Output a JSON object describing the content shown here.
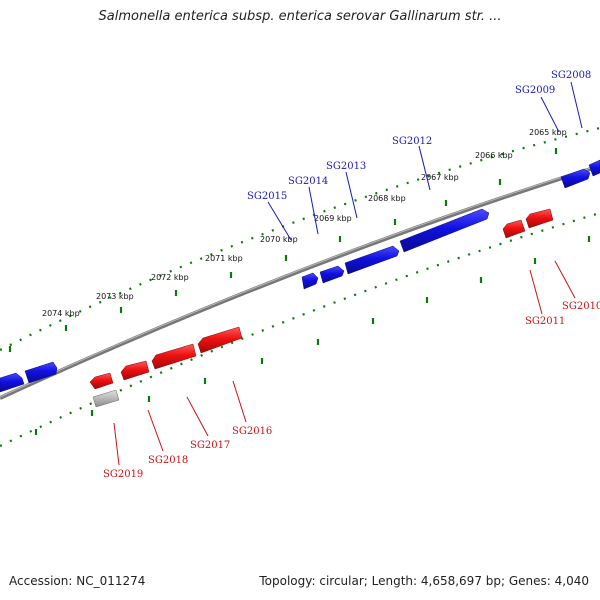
{
  "title": "Salmonella enterica subsp. enterica serovar Gallinarum str. ...",
  "footer": {
    "accession": "Accession: NC_011274",
    "summary": "Topology: circular; Length: 4,658,697 bp; Genes: 4,040"
  },
  "colors": {
    "forward_gene": "#1010e0",
    "reverse_gene": "#ee1111",
    "other_gene": "#b8b8b8",
    "backbone": "#808080",
    "ticks": "#0a7a0a",
    "forward_label": "#1a1ab8",
    "reverse_label": "#cc1111"
  },
  "scale_labels": [
    "2074 kbp",
    "2073 kbp",
    "2072 kbp",
    "2071 kbp",
    "2070 kbp",
    "2069 kbp",
    "2068 kbp",
    "2067 kbp",
    "2066 kbp",
    "2065 kbp"
  ],
  "genes_forward": [
    {
      "label": "SG2008"
    },
    {
      "label": "SG2009"
    },
    {
      "label": "SG2012"
    },
    {
      "label": "SG2013"
    },
    {
      "label": "SG2014"
    },
    {
      "label": "SG2015"
    }
  ],
  "genes_reverse": [
    {
      "label": "SG2010"
    },
    {
      "label": "SG2011"
    },
    {
      "label": "SG2016"
    },
    {
      "label": "SG2017"
    },
    {
      "label": "SG2018"
    },
    {
      "label": "SG2019"
    }
  ]
}
